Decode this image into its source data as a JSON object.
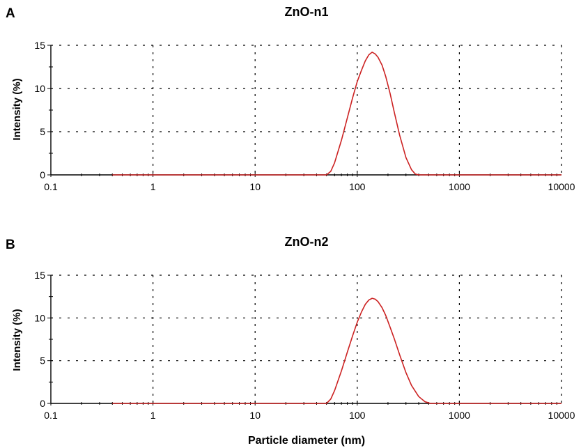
{
  "xlabel": "Particle diameter (nm)",
  "colors": {
    "curve": "#cc2222",
    "axis": "#000000",
    "grid": "#000000"
  },
  "chart_data": [
    {
      "type": "line",
      "panel_letter": "A",
      "title": "ZnO-n1",
      "xlabel": "",
      "ylabel": "Intensity (%)",
      "xscale": "log",
      "xlim": [
        0.1,
        10000
      ],
      "ylim": [
        0,
        15
      ],
      "xticks": [
        "0.1",
        "1",
        "10",
        "100",
        "1000",
        "10000"
      ],
      "yticks": [
        "0",
        "5",
        "10",
        "15"
      ],
      "grid": true,
      "series": [
        {
          "x": [
            0.4,
            1,
            10,
            50,
            55,
            60,
            70,
            80,
            90,
            100,
            110,
            120,
            130,
            140,
            150,
            160,
            175,
            190,
            210,
            230,
            260,
            300,
            340,
            370,
            400,
            1000,
            10000
          ],
          "y": [
            0,
            0,
            0,
            0,
            0.4,
            1.4,
            4.0,
            6.6,
            8.9,
            10.8,
            12.1,
            13.2,
            13.9,
            14.2,
            14.0,
            13.6,
            12.7,
            11.4,
            9.4,
            7.3,
            4.6,
            2.0,
            0.6,
            0.1,
            0,
            0,
            0
          ]
        }
      ]
    },
    {
      "type": "line",
      "panel_letter": "B",
      "title": "ZnO-n2",
      "xlabel": "Particle diameter (nm)",
      "ylabel": "Intensity (%)",
      "xscale": "log",
      "xlim": [
        0.1,
        10000
      ],
      "ylim": [
        0,
        15
      ],
      "xticks": [
        "0.1",
        "1",
        "10",
        "100",
        "1000",
        "10000"
      ],
      "yticks": [
        "0",
        "5",
        "10",
        "15"
      ],
      "grid": true,
      "series": [
        {
          "x": [
            0.4,
            1,
            10,
            50,
            55,
            60,
            70,
            80,
            90,
            100,
            110,
            120,
            130,
            140,
            150,
            160,
            175,
            190,
            210,
            230,
            260,
            300,
            340,
            400,
            460,
            520,
            1000,
            10000
          ],
          "y": [
            0,
            0,
            0,
            0,
            0.5,
            1.5,
            3.8,
            6.0,
            7.9,
            9.5,
            10.7,
            11.6,
            12.1,
            12.3,
            12.2,
            11.9,
            11.2,
            10.3,
            8.9,
            7.6,
            5.7,
            3.6,
            2.1,
            0.8,
            0.2,
            0,
            0,
            0
          ]
        }
      ]
    }
  ]
}
